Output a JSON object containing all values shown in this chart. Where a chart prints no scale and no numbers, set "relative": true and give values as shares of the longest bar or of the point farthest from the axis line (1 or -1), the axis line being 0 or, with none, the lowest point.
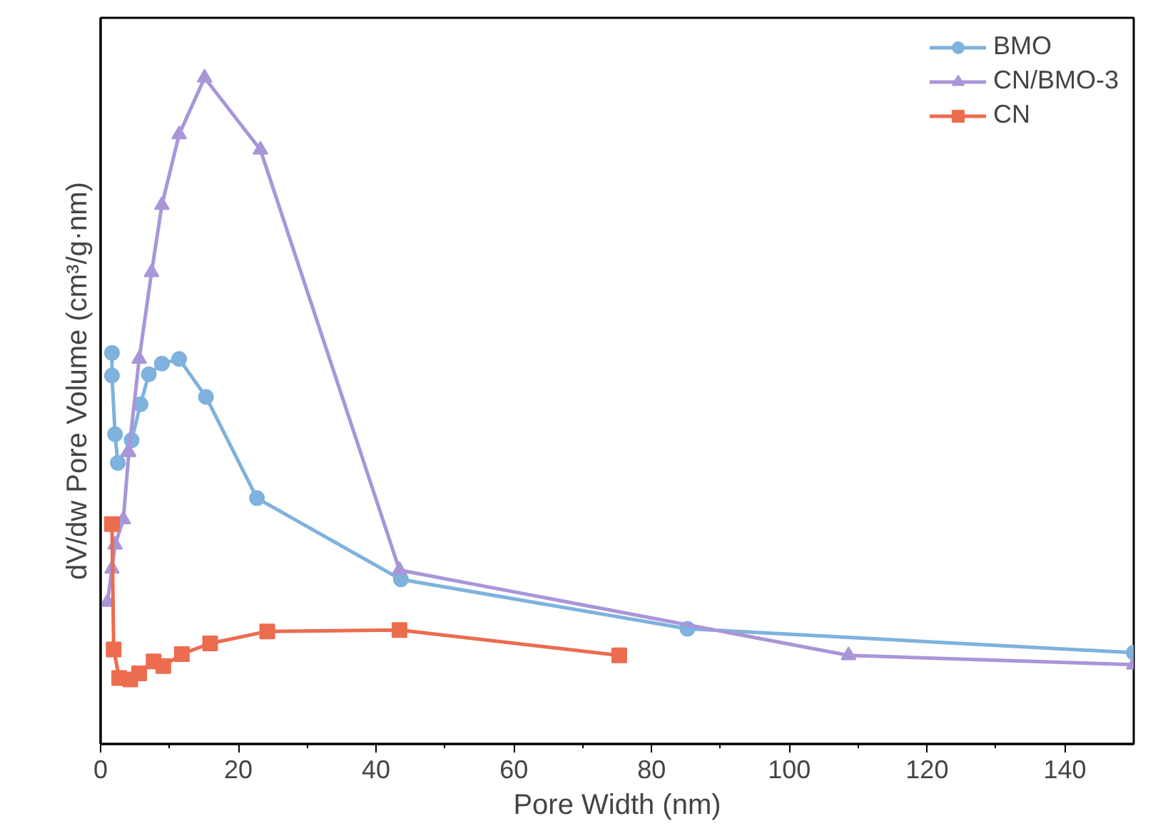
{
  "chart_data": {
    "type": "line",
    "relative": true,
    "xlabel": "Pore Width (nm)",
    "ylabel": "dV/dw Pore Volume (cm³/g·nm)",
    "xlim": [
      0,
      150
    ],
    "xticks": [
      0,
      20,
      40,
      60,
      80,
      100,
      120,
      140
    ],
    "grid": false,
    "legend": "top right",
    "line_style": "solid",
    "series": [
      {
        "name": "BMO",
        "color": "#7fb2dd",
        "marker": "circle",
        "x": [
          1.65,
          1.65,
          2.1,
          2.5,
          4.5,
          5.8,
          7.0,
          8.9,
          11.4,
          15.3,
          22.7,
          43.6,
          85.2,
          150
        ],
        "values": [
          0.587,
          0.553,
          0.465,
          0.422,
          0.456,
          0.51,
          0.555,
          0.571,
          0.578,
          0.521,
          0.369,
          0.247,
          0.173,
          0.137
        ]
      },
      {
        "name": "CN/BMO-3",
        "color": "#a996d8",
        "marker": "triangle",
        "x": [
          1.0,
          1.65,
          2.1,
          3.3,
          4.1,
          5.6,
          7.4,
          8.9,
          11.4,
          15.1,
          23.2,
          43.4,
          108.6,
          150
        ],
        "values": [
          0.213,
          0.263,
          0.299,
          0.337,
          0.438,
          0.578,
          0.708,
          0.809,
          0.915,
          1.0,
          0.892,
          0.261,
          0.133,
          0.119
        ]
      },
      {
        "name": "CN",
        "color": "#ec6c4f",
        "marker": "square",
        "x": [
          1.65,
          1.9,
          2.7,
          4.3,
          5.6,
          7.7,
          9.1,
          11.8,
          15.9,
          24.2,
          43.4,
          75.3
        ],
        "values": [
          0.33,
          0.142,
          0.099,
          0.097,
          0.106,
          0.124,
          0.117,
          0.135,
          0.151,
          0.169,
          0.171,
          0.133
        ]
      }
    ]
  }
}
